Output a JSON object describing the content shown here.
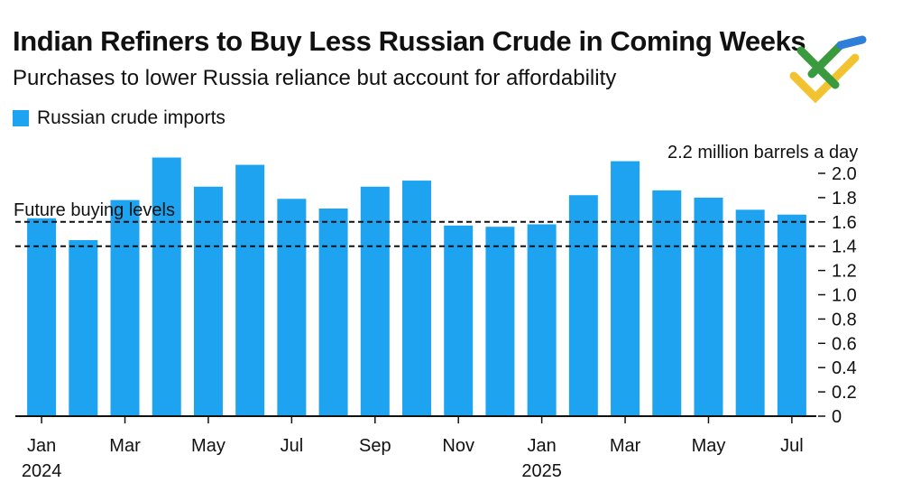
{
  "title": "Indian Refiners to Buy Less Russian Crude in Coming Weeks",
  "subtitle": "Purchases to lower Russia reliance but account for affordability",
  "logo_icon": "brand-logo-icon",
  "chart_data": {
    "type": "bar",
    "categories": [
      "Jan 2024",
      "Feb 2024",
      "Mar 2024",
      "Apr 2024",
      "May 2024",
      "Jun 2024",
      "Jul 2024",
      "Aug 2024",
      "Sep 2024",
      "Oct 2024",
      "Nov 2024",
      "Dec 2024",
      "Jan 2025",
      "Feb 2025",
      "Mar 2025",
      "Apr 2025",
      "May 2025",
      "Jun 2025",
      "Jul 2025"
    ],
    "series": [
      {
        "name": "Russian crude imports",
        "color": "#1ea3f0",
        "values": [
          1.63,
          1.45,
          1.78,
          2.13,
          1.89,
          2.07,
          1.79,
          1.71,
          1.89,
          1.94,
          1.57,
          1.56,
          1.58,
          1.82,
          2.1,
          1.86,
          1.8,
          1.7,
          1.66
        ]
      }
    ],
    "x_tick_labels": [
      {
        "index": 0,
        "label": "Jan",
        "year": "2024"
      },
      {
        "index": 2,
        "label": "Mar"
      },
      {
        "index": 4,
        "label": "May"
      },
      {
        "index": 6,
        "label": "Jul"
      },
      {
        "index": 8,
        "label": "Sep"
      },
      {
        "index": 10,
        "label": "Nov"
      },
      {
        "index": 12,
        "label": "Jan",
        "year": "2025"
      },
      {
        "index": 14,
        "label": "Mar"
      },
      {
        "index": 16,
        "label": "May"
      },
      {
        "index": 18,
        "label": "Jul"
      }
    ],
    "ylim": [
      0,
      2.2
    ],
    "y_ticks": [
      "0",
      "0.2",
      "0.4",
      "0.6",
      "0.8",
      "1.0",
      "1.2",
      "1.4",
      "1.6",
      "1.8",
      "2.0"
    ],
    "y_axis_top_label": "2.2 million barrels a day",
    "y_axis_side": "right",
    "reference_lines": [
      {
        "value": 1.6,
        "style": "dashed"
      },
      {
        "value": 1.4,
        "style": "dashed"
      }
    ],
    "annotation": "Future buying levels",
    "legend_position": "top-left",
    "grid": false
  }
}
